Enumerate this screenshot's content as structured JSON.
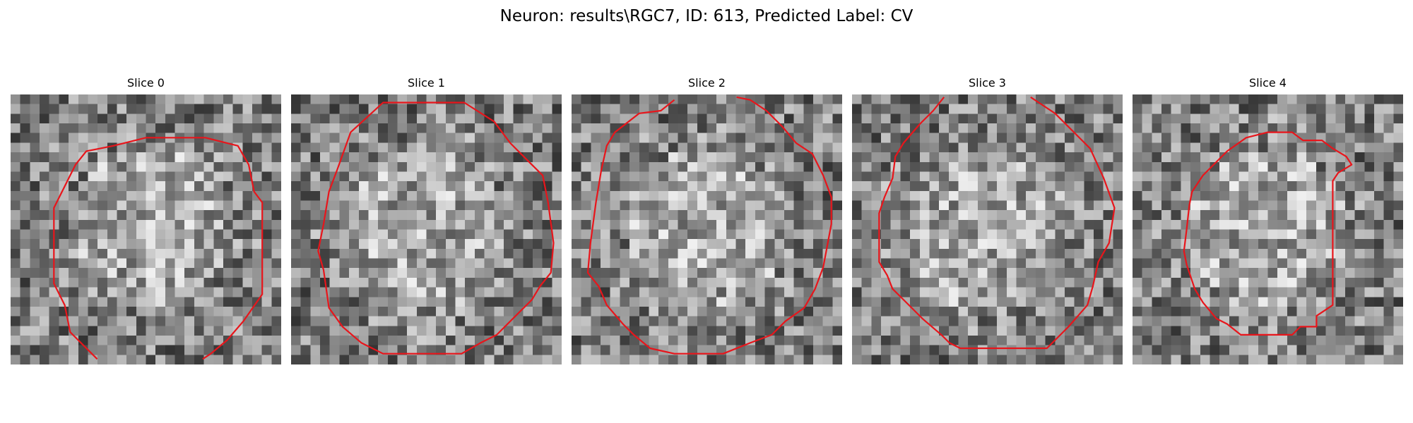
{
  "figure": {
    "suptitle": "Neuron: results\\RGC7, ID: 613, Predicted Label: CV"
  },
  "contour_color": "#e8151b",
  "slices": [
    {
      "title": "Slice 0",
      "seed": 1013,
      "contour": [
        [
          0.32,
          0.98
        ],
        [
          0.22,
          0.88
        ],
        [
          0.2,
          0.78
        ],
        [
          0.16,
          0.7
        ],
        [
          0.16,
          0.42
        ],
        [
          0.2,
          0.34
        ],
        [
          0.24,
          0.26
        ],
        [
          0.28,
          0.21
        ],
        [
          0.38,
          0.19
        ],
        [
          0.5,
          0.16
        ],
        [
          0.72,
          0.16
        ],
        [
          0.84,
          0.19
        ],
        [
          0.88,
          0.26
        ],
        [
          0.9,
          0.36
        ],
        [
          0.93,
          0.4
        ],
        [
          0.93,
          0.74
        ],
        [
          0.86,
          0.84
        ],
        [
          0.8,
          0.91
        ],
        [
          0.74,
          0.96
        ],
        [
          0.71,
          0.98
        ]
      ],
      "closed": false
    },
    {
      "title": "Slice 1",
      "seed": 2027,
      "contour": [
        [
          0.34,
          0.03
        ],
        [
          0.64,
          0.03
        ],
        [
          0.75,
          0.1
        ],
        [
          0.81,
          0.18
        ],
        [
          0.88,
          0.25
        ],
        [
          0.93,
          0.3
        ],
        [
          0.95,
          0.4
        ],
        [
          0.97,
          0.55
        ],
        [
          0.96,
          0.66
        ],
        [
          0.92,
          0.71
        ],
        [
          0.89,
          0.76
        ],
        [
          0.84,
          0.81
        ],
        [
          0.76,
          0.89
        ],
        [
          0.7,
          0.92
        ],
        [
          0.63,
          0.96
        ],
        [
          0.34,
          0.96
        ],
        [
          0.26,
          0.92
        ],
        [
          0.19,
          0.86
        ],
        [
          0.14,
          0.79
        ],
        [
          0.12,
          0.65
        ],
        [
          0.1,
          0.58
        ],
        [
          0.12,
          0.48
        ],
        [
          0.14,
          0.36
        ],
        [
          0.17,
          0.28
        ],
        [
          0.22,
          0.14
        ]
      ],
      "closed": true
    },
    {
      "title": "Slice 2",
      "seed": 3041,
      "contour": [
        [
          0.38,
          0.02
        ],
        [
          0.33,
          0.06
        ],
        [
          0.25,
          0.07
        ],
        [
          0.16,
          0.14
        ],
        [
          0.13,
          0.19
        ],
        [
          0.11,
          0.28
        ],
        [
          0.09,
          0.4
        ],
        [
          0.07,
          0.55
        ],
        [
          0.06,
          0.66
        ],
        [
          0.1,
          0.71
        ],
        [
          0.13,
          0.78
        ],
        [
          0.19,
          0.85
        ],
        [
          0.23,
          0.89
        ],
        [
          0.29,
          0.94
        ],
        [
          0.38,
          0.96
        ],
        [
          0.56,
          0.96
        ],
        [
          0.66,
          0.92
        ],
        [
          0.74,
          0.89
        ],
        [
          0.79,
          0.84
        ],
        [
          0.86,
          0.79
        ],
        [
          0.9,
          0.72
        ],
        [
          0.93,
          0.64
        ],
        [
          0.96,
          0.48
        ],
        [
          0.96,
          0.38
        ],
        [
          0.93,
          0.3
        ],
        [
          0.89,
          0.22
        ],
        [
          0.83,
          0.18
        ],
        [
          0.78,
          0.12
        ],
        [
          0.72,
          0.06
        ],
        [
          0.66,
          0.02
        ],
        [
          0.61,
          0.01
        ]
      ],
      "closed": false
    },
    {
      "title": "Slice 3",
      "seed": 4057,
      "contour": [
        [
          0.34,
          0.01
        ],
        [
          0.3,
          0.06
        ],
        [
          0.25,
          0.11
        ],
        [
          0.19,
          0.18
        ],
        [
          0.16,
          0.23
        ],
        [
          0.15,
          0.31
        ],
        [
          0.12,
          0.38
        ],
        [
          0.1,
          0.44
        ],
        [
          0.1,
          0.62
        ],
        [
          0.13,
          0.67
        ],
        [
          0.15,
          0.72
        ],
        [
          0.2,
          0.77
        ],
        [
          0.26,
          0.83
        ],
        [
          0.33,
          0.89
        ],
        [
          0.36,
          0.92
        ],
        [
          0.4,
          0.94
        ],
        [
          0.72,
          0.94
        ],
        [
          0.8,
          0.86
        ],
        [
          0.87,
          0.78
        ],
        [
          0.89,
          0.71
        ],
        [
          0.91,
          0.62
        ],
        [
          0.95,
          0.55
        ],
        [
          0.97,
          0.42
        ],
        [
          0.93,
          0.31
        ],
        [
          0.88,
          0.2
        ],
        [
          0.82,
          0.14
        ],
        [
          0.75,
          0.07
        ],
        [
          0.69,
          0.03
        ],
        [
          0.66,
          0.01
        ]
      ],
      "closed": false
    },
    {
      "title": "Slice 4",
      "seed": 5081,
      "contour": [
        [
          0.35,
          0.21
        ],
        [
          0.42,
          0.16
        ],
        [
          0.5,
          0.14
        ],
        [
          0.59,
          0.14
        ],
        [
          0.63,
          0.17
        ],
        [
          0.7,
          0.17
        ],
        [
          0.74,
          0.2
        ],
        [
          0.79,
          0.23
        ],
        [
          0.81,
          0.26
        ],
        [
          0.76,
          0.29
        ],
        [
          0.74,
          0.32
        ],
        [
          0.74,
          0.78
        ],
        [
          0.71,
          0.8
        ],
        [
          0.68,
          0.82
        ],
        [
          0.68,
          0.86
        ],
        [
          0.62,
          0.86
        ],
        [
          0.59,
          0.89
        ],
        [
          0.4,
          0.89
        ],
        [
          0.35,
          0.85
        ],
        [
          0.31,
          0.83
        ],
        [
          0.26,
          0.77
        ],
        [
          0.23,
          0.72
        ],
        [
          0.2,
          0.63
        ],
        [
          0.19,
          0.58
        ],
        [
          0.2,
          0.5
        ],
        [
          0.21,
          0.41
        ],
        [
          0.22,
          0.36
        ],
        [
          0.26,
          0.3
        ]
      ],
      "closed": true
    }
  ]
}
